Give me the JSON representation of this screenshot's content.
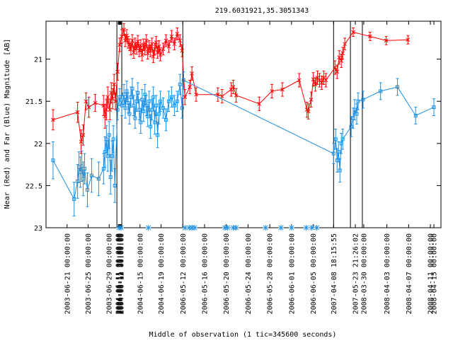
{
  "chart_data": {
    "type": "scatter",
    "title": "219.6031921,35.3051343",
    "xlabel": "Middle of observation (1 tic=345600 seconds)",
    "ylabel": "Near (Red) and Far (Blue) Magnitude [AB]",
    "ylim": [
      23,
      20.55
    ],
    "y_inverted": true,
    "grid": false,
    "yticks": [
      {
        "value": 21,
        "label": "21"
      },
      {
        "value": 21.5,
        "label": "21.5"
      },
      {
        "value": 22,
        "label": "22"
      },
      {
        "value": 22.5,
        "label": "22.5"
      },
      {
        "value": 23,
        "label": "23"
      }
    ],
    "xlim": [
      0,
      548
    ],
    "xtick_labels": [
      {
        "x": 25,
        "label": "2003-06-21 00:00:00"
      },
      {
        "x": 55,
        "label": "2003-06-25 00:00:00"
      },
      {
        "x": 85,
        "label": "2003-06-29 00:00:00"
      },
      {
        "x": 98,
        "label": "2004-06-11 00:00:00"
      },
      {
        "x": 99,
        "label": "2004-06-11 10:40:00"
      },
      {
        "x": 100,
        "label": "2004-06-11 16:00:00"
      },
      {
        "x": 101,
        "label": "2004-06-11 21:20:00"
      },
      {
        "x": 102,
        "label": "2004-06-12 00:00:00"
      },
      {
        "x": 129,
        "label": "2004-06-15 00:00:00"
      },
      {
        "x": 159,
        "label": "2004-06-19 00:00:00"
      },
      {
        "x": 190,
        "label": "2006-05-12 00:00:00"
      },
      {
        "x": 221,
        "label": "2006-05-16 00:00:00"
      },
      {
        "x": 252,
        "label": "2006-05-20 00:00:00"
      },
      {
        "x": 283,
        "label": "2006-05-24 00:00:00"
      },
      {
        "x": 314,
        "label": "2006-05-28 00:00:00"
      },
      {
        "x": 345,
        "label": "2006-06-01 00:00:00"
      },
      {
        "x": 376,
        "label": "2006-06-05 00:00:00"
      },
      {
        "x": 405,
        "label": "2007-04-08 18:15:55"
      },
      {
        "x": 436,
        "label": "2007-05-23 21:26:02"
      },
      {
        "x": 448,
        "label": "2008-03-30 00:00:00"
      },
      {
        "x": 481,
        "label": "2008-04-03 00:00:00"
      },
      {
        "x": 512,
        "label": "2008-04-07 00:00:00"
      },
      {
        "x": 543,
        "label": "2008-04-11 00:00:00"
      },
      {
        "x": 574,
        "label": "2008-04-15 00:00:00"
      }
    ],
    "segment_breaks": [
      96,
      103,
      190,
      405,
      429,
      446
    ],
    "series": [
      {
        "color": "#ff0000",
        "marker": "x",
        "points": [
          {
            "x": 5,
            "y": 21.72,
            "err": 0.12
          },
          {
            "x": 40,
            "y": 21.63,
            "err": 0.12
          },
          {
            "x": 45,
            "y": 21.98,
            "err": 0.14
          },
          {
            "x": 48,
            "y": 21.9,
            "err": 0.12
          },
          {
            "x": 52,
            "y": 21.5,
            "err": 0.1
          },
          {
            "x": 56,
            "y": 21.57,
            "err": 0.12
          },
          {
            "x": 65,
            "y": 21.52,
            "err": 0.1
          },
          {
            "x": 77,
            "y": 21.55,
            "err": 0.12
          },
          {
            "x": 79,
            "y": 21.68,
            "err": 0.14
          },
          {
            "x": 81,
            "y": 21.6,
            "err": 0.12
          },
          {
            "x": 83,
            "y": 21.45,
            "err": 0.12
          },
          {
            "x": 86,
            "y": 21.6,
            "err": 0.12
          },
          {
            "x": 88,
            "y": 21.4,
            "err": 0.12
          },
          {
            "x": 90,
            "y": 21.47,
            "err": 0.12
          },
          {
            "x": 92,
            "y": 21.3,
            "err": 0.12
          },
          {
            "x": 94,
            "y": 21.5,
            "err": 0.1
          },
          {
            "x": 97,
            "y": 21.15,
            "err": 0.1
          },
          {
            "x": 100,
            "y": 20.83,
            "err": 0.08
          },
          {
            "x": 103,
            "y": 20.73,
            "err": 0.08
          },
          {
            "x": 106,
            "y": 20.65,
            "err": 0.07
          },
          {
            "x": 108,
            "y": 20.78,
            "err": 0.07
          },
          {
            "x": 110,
            "y": 20.72,
            "err": 0.07
          },
          {
            "x": 112,
            "y": 20.8,
            "err": 0.07
          },
          {
            "x": 114,
            "y": 20.83,
            "err": 0.07
          },
          {
            "x": 116,
            "y": 20.88,
            "err": 0.07
          },
          {
            "x": 118,
            "y": 20.78,
            "err": 0.07
          },
          {
            "x": 120,
            "y": 20.92,
            "err": 0.07
          },
          {
            "x": 122,
            "y": 20.82,
            "err": 0.07
          },
          {
            "x": 124,
            "y": 20.87,
            "err": 0.07
          },
          {
            "x": 126,
            "y": 20.79,
            "err": 0.07
          },
          {
            "x": 128,
            "y": 20.9,
            "err": 0.07
          },
          {
            "x": 130,
            "y": 20.84,
            "err": 0.07
          },
          {
            "x": 132,
            "y": 20.95,
            "err": 0.07
          },
          {
            "x": 134,
            "y": 20.83,
            "err": 0.07
          },
          {
            "x": 136,
            "y": 20.88,
            "err": 0.07
          },
          {
            "x": 138,
            "y": 20.78,
            "err": 0.07
          },
          {
            "x": 140,
            "y": 20.93,
            "err": 0.07
          },
          {
            "x": 142,
            "y": 20.85,
            "err": 0.07
          },
          {
            "x": 144,
            "y": 20.9,
            "err": 0.07
          },
          {
            "x": 146,
            "y": 20.82,
            "err": 0.07
          },
          {
            "x": 148,
            "y": 20.97,
            "err": 0.07
          },
          {
            "x": 150,
            "y": 20.88,
            "err": 0.07
          },
          {
            "x": 152,
            "y": 20.8,
            "err": 0.07
          },
          {
            "x": 154,
            "y": 20.92,
            "err": 0.07
          },
          {
            "x": 156,
            "y": 20.85,
            "err": 0.07
          },
          {
            "x": 158,
            "y": 20.95,
            "err": 0.07
          },
          {
            "x": 162,
            "y": 20.88,
            "err": 0.07
          },
          {
            "x": 166,
            "y": 20.78,
            "err": 0.07
          },
          {
            "x": 170,
            "y": 20.85,
            "err": 0.07
          },
          {
            "x": 174,
            "y": 20.73,
            "err": 0.07
          },
          {
            "x": 178,
            "y": 20.82,
            "err": 0.07
          },
          {
            "x": 182,
            "y": 20.7,
            "err": 0.07
          },
          {
            "x": 186,
            "y": 20.78,
            "err": 0.07
          },
          {
            "x": 189,
            "y": 20.9,
            "err": 0.07
          },
          {
            "x": 193,
            "y": 21.45,
            "err": 0.09
          },
          {
            "x": 200,
            "y": 21.33,
            "err": 0.08
          },
          {
            "x": 203,
            "y": 21.17,
            "err": 0.08
          },
          {
            "x": 209,
            "y": 21.42,
            "err": 0.08
          },
          {
            "x": 240,
            "y": 21.42,
            "err": 0.08
          },
          {
            "x": 246,
            "y": 21.44,
            "err": 0.08
          },
          {
            "x": 259,
            "y": 21.36,
            "err": 0.08
          },
          {
            "x": 262,
            "y": 21.33,
            "err": 0.08
          },
          {
            "x": 266,
            "y": 21.43,
            "err": 0.08
          },
          {
            "x": 299,
            "y": 21.53,
            "err": 0.08
          },
          {
            "x": 317,
            "y": 21.38,
            "err": 0.08
          },
          {
            "x": 332,
            "y": 21.36,
            "err": 0.08
          },
          {
            "x": 356,
            "y": 21.25,
            "err": 0.08
          },
          {
            "x": 367,
            "y": 21.6,
            "err": 0.09
          },
          {
            "x": 369,
            "y": 21.62,
            "err": 0.09
          },
          {
            "x": 373,
            "y": 21.48,
            "err": 0.09
          },
          {
            "x": 376,
            "y": 21.24,
            "err": 0.08
          },
          {
            "x": 379,
            "y": 21.3,
            "err": 0.08
          },
          {
            "x": 382,
            "y": 21.22,
            "err": 0.08
          },
          {
            "x": 385,
            "y": 21.25,
            "err": 0.08
          },
          {
            "x": 388,
            "y": 21.28,
            "err": 0.08
          },
          {
            "x": 391,
            "y": 21.22,
            "err": 0.08
          },
          {
            "x": 394,
            "y": 21.25,
            "err": 0.08
          },
          {
            "x": 407,
            "y": 21.1,
            "err": 0.08
          },
          {
            "x": 410,
            "y": 21.15,
            "err": 0.08
          },
          {
            "x": 413,
            "y": 20.98,
            "err": 0.08
          },
          {
            "x": 416,
            "y": 21.02,
            "err": 0.08
          },
          {
            "x": 418,
            "y": 20.93,
            "err": 0.07
          },
          {
            "x": 421,
            "y": 20.82,
            "err": 0.07
          },
          {
            "x": 433,
            "y": 20.68,
            "err": 0.05
          },
          {
            "x": 457,
            "y": 20.73,
            "err": 0.05
          },
          {
            "x": 480,
            "y": 20.78,
            "err": 0.05
          },
          {
            "x": 511,
            "y": 20.77,
            "err": 0.05
          }
        ]
      },
      {
        "color": "#1e8fe0",
        "marker": "square",
        "points": [
          {
            "x": 5,
            "y": 22.2,
            "err": 0.22
          },
          {
            "x": 35,
            "y": 22.66,
            "err": 0.2
          },
          {
            "x": 40,
            "y": 22.45,
            "err": 0.2
          },
          {
            "x": 42,
            "y": 22.28,
            "err": 0.18
          },
          {
            "x": 44,
            "y": 22.34,
            "err": 0.18
          },
          {
            "x": 46,
            "y": 22.27,
            "err": 0.18
          },
          {
            "x": 48,
            "y": 22.42,
            "err": 0.2
          },
          {
            "x": 50,
            "y": 22.3,
            "err": 0.18
          },
          {
            "x": 54,
            "y": 22.55,
            "err": 0.2
          },
          {
            "x": 60,
            "y": 22.38,
            "err": 0.2
          },
          {
            "x": 70,
            "y": 22.42,
            "err": 0.2
          },
          {
            "x": 77,
            "y": 22.3,
            "err": 0.18
          },
          {
            "x": 79,
            "y": 22.1,
            "err": 0.18
          },
          {
            "x": 81,
            "y": 21.95,
            "err": 0.16
          },
          {
            "x": 83,
            "y": 22.15,
            "err": 0.18
          },
          {
            "x": 85,
            "y": 21.9,
            "err": 0.16
          },
          {
            "x": 87,
            "y": 22.4,
            "err": 0.2
          },
          {
            "x": 89,
            "y": 22.15,
            "err": 0.18
          },
          {
            "x": 91,
            "y": 21.95,
            "err": 0.16
          },
          {
            "x": 93,
            "y": 22.5,
            "err": 0.2
          },
          {
            "x": 97,
            "y": 21.6,
            "err": 0.12
          },
          {
            "x": 100,
            "y": 21.45,
            "err": 0.1
          },
          {
            "x": 103,
            "y": 21.55,
            "err": 0.12
          },
          {
            "x": 106,
            "y": 21.42,
            "err": 0.12
          },
          {
            "x": 108,
            "y": 21.58,
            "err": 0.12
          },
          {
            "x": 110,
            "y": 21.38,
            "err": 0.12
          },
          {
            "x": 112,
            "y": 21.52,
            "err": 0.12
          },
          {
            "x": 114,
            "y": 21.65,
            "err": 0.12
          },
          {
            "x": 116,
            "y": 21.45,
            "err": 0.12
          },
          {
            "x": 118,
            "y": 21.35,
            "err": 0.12
          },
          {
            "x": 120,
            "y": 21.55,
            "err": 0.12
          },
          {
            "x": 122,
            "y": 21.7,
            "err": 0.12
          },
          {
            "x": 124,
            "y": 21.5,
            "err": 0.12
          },
          {
            "x": 126,
            "y": 21.4,
            "err": 0.12
          },
          {
            "x": 128,
            "y": 21.6,
            "err": 0.12
          },
          {
            "x": 130,
            "y": 21.75,
            "err": 0.13
          },
          {
            "x": 132,
            "y": 21.48,
            "err": 0.12
          },
          {
            "x": 134,
            "y": 21.62,
            "err": 0.12
          },
          {
            "x": 136,
            "y": 21.42,
            "err": 0.12
          },
          {
            "x": 138,
            "y": 21.55,
            "err": 0.12
          },
          {
            "x": 140,
            "y": 21.68,
            "err": 0.12
          },
          {
            "x": 142,
            "y": 21.5,
            "err": 0.12
          },
          {
            "x": 144,
            "y": 21.8,
            "err": 0.14
          },
          {
            "x": 146,
            "y": 21.6,
            "err": 0.12
          },
          {
            "x": 148,
            "y": 21.45,
            "err": 0.12
          },
          {
            "x": 150,
            "y": 21.75,
            "err": 0.14
          },
          {
            "x": 152,
            "y": 21.55,
            "err": 0.12
          },
          {
            "x": 154,
            "y": 21.9,
            "err": 0.15
          },
          {
            "x": 156,
            "y": 21.65,
            "err": 0.12
          },
          {
            "x": 158,
            "y": 21.5,
            "err": 0.12
          },
          {
            "x": 162,
            "y": 21.58,
            "err": 0.12
          },
          {
            "x": 166,
            "y": 21.72,
            "err": 0.13
          },
          {
            "x": 170,
            "y": 21.5,
            "err": 0.12
          },
          {
            "x": 174,
            "y": 21.45,
            "err": 0.12
          },
          {
            "x": 178,
            "y": 21.55,
            "err": 0.12
          },
          {
            "x": 182,
            "y": 21.5,
            "err": 0.12
          },
          {
            "x": 186,
            "y": 21.3,
            "err": 0.12
          },
          {
            "x": 189,
            "y": 21.58,
            "err": 0.12
          },
          {
            "x": 191,
            "y": 21.25,
            "err": 0.1
          },
          {
            "x": 405,
            "y": 22.12,
            "err": 0.12
          },
          {
            "x": 408,
            "y": 21.95,
            "err": 0.12
          },
          {
            "x": 410,
            "y": 22.2,
            "err": 0.14
          },
          {
            "x": 412,
            "y": 22.1,
            "err": 0.12
          },
          {
            "x": 414,
            "y": 22.32,
            "err": 0.14
          },
          {
            "x": 416,
            "y": 22.0,
            "err": 0.12
          },
          {
            "x": 418,
            "y": 21.95,
            "err": 0.12
          },
          {
            "x": 430,
            "y": 21.8,
            "err": 0.12
          },
          {
            "x": 433,
            "y": 21.7,
            "err": 0.12
          },
          {
            "x": 435,
            "y": 21.6,
            "err": 0.12
          },
          {
            "x": 438,
            "y": 21.65,
            "err": 0.12
          },
          {
            "x": 440,
            "y": 21.5,
            "err": 0.1
          },
          {
            "x": 447,
            "y": 21.48,
            "err": 0.1
          },
          {
            "x": 472,
            "y": 21.38,
            "err": 0.1
          },
          {
            "x": 496,
            "y": 21.33,
            "err": 0.1
          },
          {
            "x": 522,
            "y": 21.67,
            "err": 0.1
          },
          {
            "x": 548,
            "y": 21.57,
            "err": 0.1
          }
        ]
      },
      {
        "color": "#1e8fe0",
        "marker": "asterisk",
        "points": [
          {
            "x": 99,
            "y": 23
          },
          {
            "x": 102,
            "y": 23
          },
          {
            "x": 141,
            "y": 23
          },
          {
            "x": 193,
            "y": 23
          },
          {
            "x": 199,
            "y": 23
          },
          {
            "x": 203,
            "y": 23
          },
          {
            "x": 207,
            "y": 23
          },
          {
            "x": 250,
            "y": 23
          },
          {
            "x": 254,
            "y": 23
          },
          {
            "x": 262,
            "y": 23
          },
          {
            "x": 266,
            "y": 23
          },
          {
            "x": 308,
            "y": 23
          },
          {
            "x": 330,
            "y": 23
          },
          {
            "x": 345,
            "y": 23
          },
          {
            "x": 366,
            "y": 23
          },
          {
            "x": 374,
            "y": 23
          },
          {
            "x": 381,
            "y": 23
          }
        ]
      }
    ]
  }
}
